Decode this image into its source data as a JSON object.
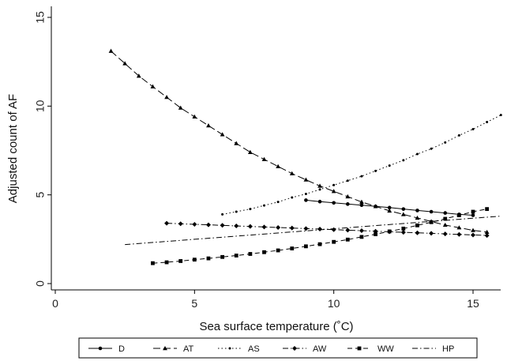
{
  "chart_data": {
    "type": "line",
    "title": "",
    "xlabel": "Sea surface temperature (˚C)",
    "ylabel": "Adjusted count of AF",
    "xlim": [
      0,
      16
    ],
    "ylim": [
      0,
      15
    ],
    "x_ticks": [
      "0",
      "5",
      "10",
      "15"
    ],
    "y_ticks": [
      "0",
      "5",
      "10",
      "15"
    ],
    "grid": false,
    "legend_position": "bottom",
    "series": [
      {
        "name": "D",
        "marker": "circle",
        "dash": "solid",
        "x": [
          9,
          9.5,
          10,
          10.5,
          11,
          11.5,
          12,
          12.5,
          13,
          13.5,
          14,
          14.5,
          15
        ],
        "values": [
          4.7,
          4.62,
          4.55,
          4.48,
          4.42,
          4.35,
          4.28,
          4.2,
          4.12,
          4.05,
          3.98,
          3.9,
          3.85
        ]
      },
      {
        "name": "AT",
        "marker": "triangle",
        "dash": "longdash",
        "x": [
          2,
          2.5,
          3,
          3.5,
          4,
          4.5,
          5,
          5.5,
          6,
          6.5,
          7,
          7.5,
          8,
          8.5,
          9,
          9.5,
          10,
          10.5,
          11,
          11.5,
          12,
          12.5,
          13,
          13.5,
          14,
          14.5,
          15,
          15.5
        ],
        "values": [
          13.1,
          12.4,
          11.7,
          11.1,
          10.5,
          9.9,
          9.4,
          8.9,
          8.4,
          7.9,
          7.4,
          7.0,
          6.6,
          6.2,
          5.85,
          5.5,
          5.2,
          4.9,
          4.6,
          4.35,
          4.1,
          3.9,
          3.7,
          3.5,
          3.3,
          3.15,
          3.0,
          2.9
        ]
      },
      {
        "name": "AS",
        "marker": "dot",
        "dash": "dotted",
        "x": [
          6,
          6.5,
          7,
          7.5,
          8,
          8.5,
          9,
          9.5,
          10,
          10.5,
          11,
          11.5,
          12,
          12.5,
          13,
          13.5,
          14,
          14.5,
          15,
          15.5,
          16
        ],
        "values": [
          3.9,
          4.05,
          4.2,
          4.4,
          4.6,
          4.85,
          5.05,
          5.3,
          5.55,
          5.8,
          6.05,
          6.35,
          6.65,
          6.95,
          7.3,
          7.6,
          7.95,
          8.35,
          8.7,
          9.1,
          9.5
        ]
      },
      {
        "name": "AW",
        "marker": "diamond",
        "dash": "dashdot",
        "x": [
          4,
          4.5,
          5,
          5.5,
          6,
          6.5,
          7,
          7.5,
          8,
          8.5,
          9,
          9.5,
          10,
          10.5,
          11,
          11.5,
          12,
          12.5,
          13,
          13.5,
          14,
          14.5,
          15,
          15.5
        ],
        "values": [
          3.4,
          3.37,
          3.34,
          3.31,
          3.28,
          3.25,
          3.22,
          3.19,
          3.16,
          3.13,
          3.1,
          3.07,
          3.04,
          3.01,
          2.98,
          2.95,
          2.92,
          2.89,
          2.86,
          2.83,
          2.8,
          2.77,
          2.74,
          2.71
        ]
      },
      {
        "name": "WW",
        "marker": "square",
        "dash": "dash",
        "x": [
          3.5,
          4,
          4.5,
          5,
          5.5,
          6,
          6.5,
          7,
          7.5,
          8,
          8.5,
          9,
          9.5,
          10,
          10.5,
          11,
          11.5,
          12,
          12.5,
          13,
          13.5,
          14,
          14.5,
          15,
          15.5
        ],
        "values": [
          1.15,
          1.2,
          1.27,
          1.35,
          1.42,
          1.5,
          1.58,
          1.67,
          1.77,
          1.87,
          1.98,
          2.1,
          2.22,
          2.35,
          2.48,
          2.63,
          2.78,
          2.94,
          3.1,
          3.28,
          3.46,
          3.65,
          3.85,
          4.05,
          4.2
        ]
      },
      {
        "name": "HP",
        "marker": "none",
        "dash": "dashdot",
        "x": [
          2.5,
          16
        ],
        "values": [
          2.2,
          3.8
        ]
      }
    ]
  }
}
